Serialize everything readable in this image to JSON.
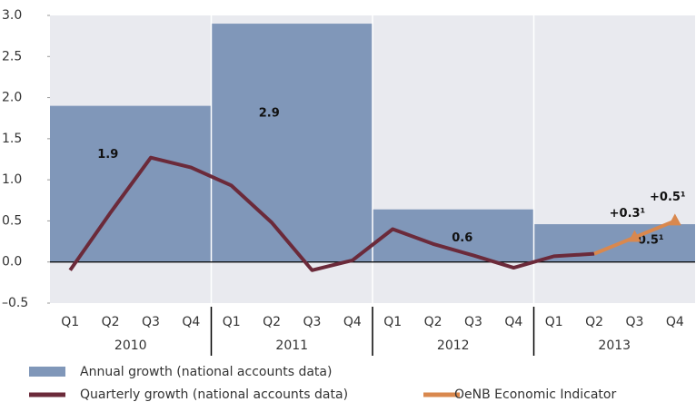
{
  "chart_data": {
    "type": "bar",
    "categories": [
      "Q1",
      "Q2",
      "Q3",
      "Q4",
      "Q1",
      "Q2",
      "Q3",
      "Q4",
      "Q1",
      "Q2",
      "Q3",
      "Q4",
      "Q1",
      "Q2",
      "Q3",
      "Q4"
    ],
    "groups": [
      "2010",
      "2011",
      "2012",
      "2013"
    ],
    "bar_series": {
      "name": "Annual growth (national accounts data)",
      "color": "#8097b9",
      "values": [
        1.9,
        2.9,
        0.64,
        0.46
      ],
      "value_labels": [
        "1.9",
        "2.9",
        "0.6",
        "0.5¹"
      ]
    },
    "series": [
      {
        "name": "Quarterly growth (national accounts data)",
        "color": "#6b2a3a",
        "values": [
          -0.1,
          0.6,
          1.27,
          1.15,
          0.93,
          0.48,
          -0.1,
          0.02,
          0.4,
          0.22,
          0.08,
          -0.07,
          0.07,
          0.1,
          null,
          null
        ]
      },
      {
        "name": "OeNB Economic Indicator",
        "color": "#d9884e",
        "values": [
          null,
          null,
          null,
          null,
          null,
          null,
          null,
          null,
          null,
          null,
          null,
          null,
          null,
          0.1,
          0.3,
          0.5
        ],
        "value_labels": [
          null,
          null,
          null,
          null,
          null,
          null,
          null,
          null,
          null,
          null,
          null,
          null,
          null,
          null,
          "+0.3¹",
          "+0.5¹"
        ]
      }
    ],
    "ylim": [
      -0.5,
      3.0
    ],
    "yticks": [
      {
        "value": -0.5,
        "label": "–0.5"
      },
      {
        "value": 0,
        "label": "0.0"
      },
      0.5,
      {
        "value": 1,
        "label": "1.0"
      },
      1.5,
      {
        "value": 2,
        "label": "2.0"
      },
      2.5,
      {
        "value": 3,
        "label": "3.0"
      }
    ]
  }
}
